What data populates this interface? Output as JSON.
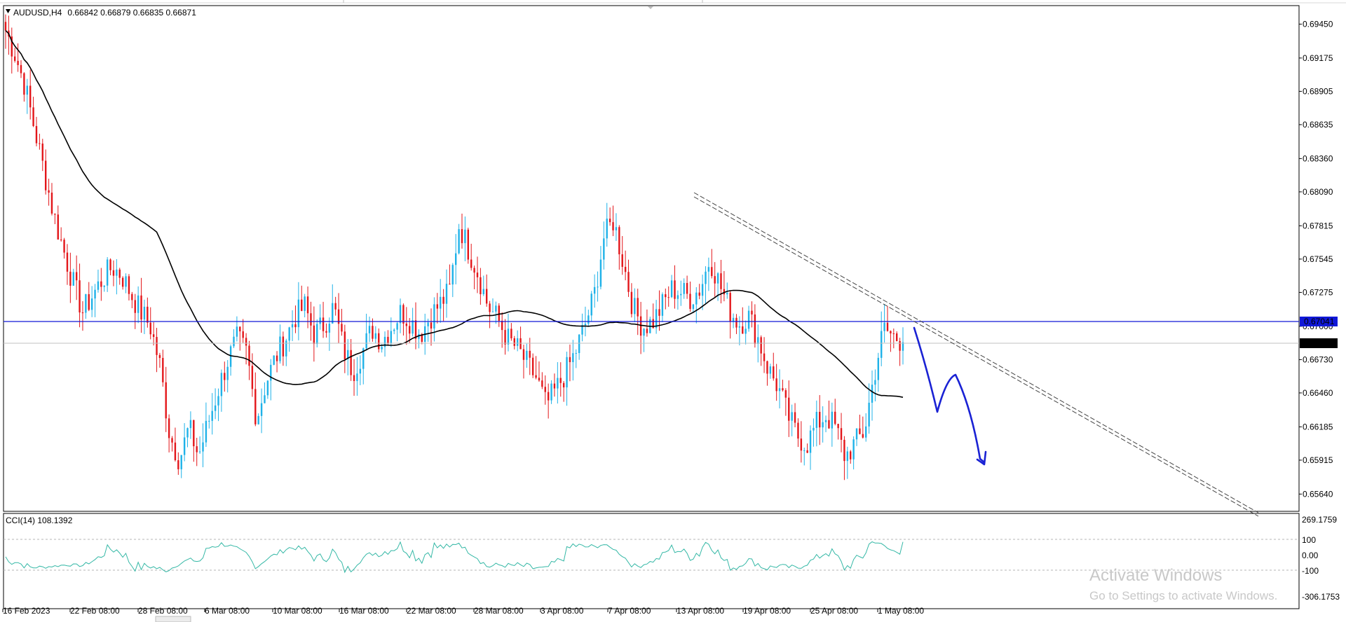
{
  "instrument": {
    "symbol_tf": "AUDUSD,H4",
    "ohlc": "0.66842 0.66879 0.66835 0.66871"
  },
  "indicator": {
    "label": "CCI(14) 108.1392",
    "levels": [
      "269.1759",
      "100",
      "0.00",
      "-100",
      "-306.1753"
    ]
  },
  "price_tags": {
    "hline": "0.67041",
    "bid": "0.66871"
  },
  "watermark": {
    "line1": "Activate Windows",
    "line2": "Go to Settings to activate Windows."
  },
  "colors": {
    "bull": "#1fb2e8",
    "bear": "#e3161a",
    "ma": "#000000",
    "hline": "#1018d8",
    "cci": "#35b8a6",
    "drawing": "#1a22d4"
  },
  "chart_data": {
    "type": "candlestick",
    "ylim": [
      0.655,
      0.696
    ],
    "y_ticks": [
      "0.69450",
      "0.69175",
      "0.68905",
      "0.68635",
      "0.68360",
      "0.68090",
      "0.67815",
      "0.67545",
      "0.67275",
      "0.67000",
      "0.66730",
      "0.66460",
      "0.66185",
      "0.65915",
      "0.65640"
    ],
    "x_ticks": [
      "16 Feb 2023",
      "22 Feb 08:00",
      "28 Feb 08:00",
      "6 Mar 08:00",
      "10 Mar 08:00",
      "16 Mar 08:00",
      "22 Mar 08:00",
      "28 Mar 08:00",
      "3 Apr 08:00",
      "7 Apr 08:00",
      "13 Apr 08:00",
      "19 Apr 08:00",
      "25 Apr 08:00",
      "1 May 08:00"
    ],
    "close_path": [
      0.694,
      0.692,
      0.6895,
      0.686,
      0.6825,
      0.679,
      0.6762,
      0.6735,
      0.6712,
      0.6725,
      0.6738,
      0.6748,
      0.6742,
      0.6726,
      0.6712,
      0.67,
      0.6668,
      0.6612,
      0.6592,
      0.6618,
      0.6595,
      0.6622,
      0.6648,
      0.6672,
      0.669,
      0.6678,
      0.6625,
      0.6655,
      0.6675,
      0.669,
      0.6708,
      0.6716,
      0.6693,
      0.6702,
      0.6716,
      0.6682,
      0.6664,
      0.668,
      0.6698,
      0.6688,
      0.67,
      0.6712,
      0.6704,
      0.6694,
      0.6708,
      0.6718,
      0.6728,
      0.6783,
      0.6762,
      0.6742,
      0.6716,
      0.6706,
      0.669,
      0.6682,
      0.667,
      0.6658,
      0.6636,
      0.6648,
      0.6662,
      0.6678,
      0.67,
      0.6725,
      0.6772,
      0.6786,
      0.6752,
      0.6716,
      0.67,
      0.6703,
      0.6716,
      0.673,
      0.6728,
      0.6723,
      0.6731,
      0.6755,
      0.6734,
      0.6714,
      0.6702,
      0.6708,
      0.669,
      0.6666,
      0.6652,
      0.6629,
      0.6612,
      0.6604,
      0.662,
      0.6628,
      0.6618,
      0.6594,
      0.6605,
      0.6615,
      0.666,
      0.6698,
      0.6692,
      0.6688
    ],
    "ma_period": 50,
    "horizontal_line": 0.67041,
    "last_price": 0.66871,
    "cci_ylim": [
      -306.1753,
      269.1759
    ],
    "cci_levels": [
      100,
      0,
      -100
    ],
    "cci_last": 108.1392
  }
}
